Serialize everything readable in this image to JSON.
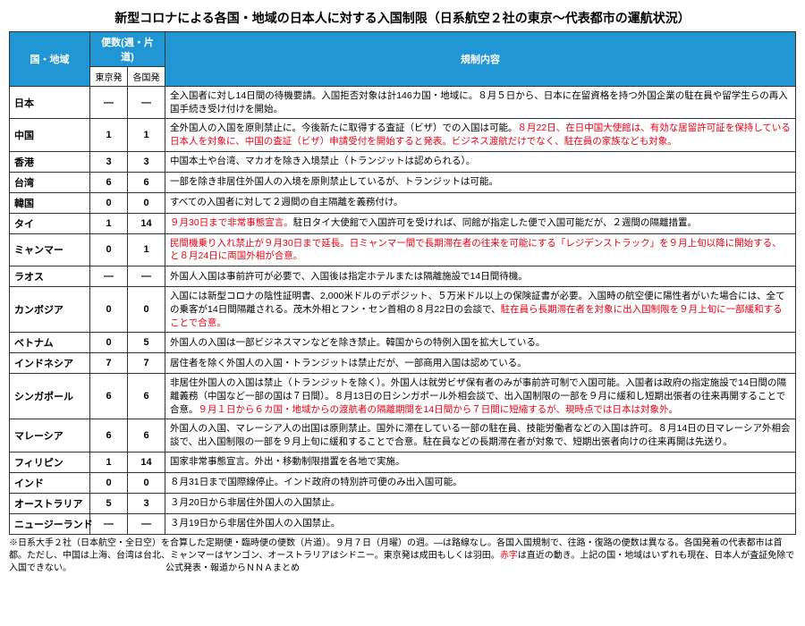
{
  "title": "新型コロナによる各国・地域の日本人に対する入国制限（日系航空２社の東京～代表都市の運航状況）",
  "headers": {
    "country": "国・地域",
    "freq_group": "便数(週・片道)",
    "from_tokyo": "東京発",
    "from_country": "各国発",
    "content": "規制内容"
  },
  "rows": [
    {
      "country": "日本",
      "tokyo": "―",
      "dest": "―",
      "content": "全入国者に対し14日間の待機要請。入国拒否対象は計146カ国・地域に。８月５日から、日本に在留資格を持つ外国企業の駐在員や留学生らの再入国手続き受け付けを開始。",
      "red": ""
    },
    {
      "country": "中国",
      "tokyo": "1",
      "dest": "1",
      "content": "全外国人の入国を原則禁止に。今後新たに取得する査証（ビザ）での入国は可能。",
      "red": "８月22日、在日中国大使館は、有効な居留許可証を保持している日本人を対象に、中国の査証（ビザ）申請受付を開始すると発表。ビジネス渡航だけでなく、駐在員の家族なども対象。"
    },
    {
      "country": "香港",
      "tokyo": "3",
      "dest": "3",
      "content": "中国本土や台湾、マカオを除き入境禁止（トランジットは認められる）。",
      "red": ""
    },
    {
      "country": "台湾",
      "tokyo": "6",
      "dest": "6",
      "content": "一部を除き非居住外国人の入境を原則禁止しているが、トランジットは可能。",
      "red": ""
    },
    {
      "country": "韓国",
      "tokyo": "0",
      "dest": "0",
      "content": "すべての入国者に対して２週間の自主隔離を義務付け。",
      "red": ""
    },
    {
      "country": "タイ",
      "tokyo": "1",
      "dest": "14",
      "content": "",
      "red": "９月30日まで非常事態宣言。",
      "content2": "駐日タイ大使館で入国許可を受ければ、同館が指定した便で入国可能だが、２週間の隔離措置。"
    },
    {
      "country": "ミャンマー",
      "tokyo": "0",
      "dest": "1",
      "content": "",
      "red": "民間機乗り入れ禁止が９月30日まで延長。日ミャンマー間で長期滞在者の往来を可能にする「レジデンストラック」を９月上旬以降に開始する、と８月24日に両国外相が合意。"
    },
    {
      "country": "ラオス",
      "tokyo": "―",
      "dest": "―",
      "content": "外国人入国は事前許可が必要で、入国後は指定ホテルまたは隔離施設で14日間待機。",
      "red": ""
    },
    {
      "country": "カンボジア",
      "tokyo": "0",
      "dest": "0",
      "content": "入国には新型コロナの陰性証明書、2,000米ドルのデポジット、５万米ドル以上の保険証書が必要。入国時の航空便に陽性者がいた場合には、全ての乗客が14日間隔離される。茂木外相とフン・セン首相の８月22日の会談で、",
      "red": "駐在員ら長期滞在者を対象に出入国制限を９月上旬に一部緩和することで合意。"
    },
    {
      "country": "ベトナム",
      "tokyo": "0",
      "dest": "5",
      "content": "外国人の入国は一部ビジネスマンなどを除き禁止。韓国からの特例入国を拡大している。",
      "red": ""
    },
    {
      "country": "インドネシア",
      "tokyo": "7",
      "dest": "7",
      "content": "居住者を除く外国人の入国・トランジットは禁止だが、一部商用入国は認めている。",
      "red": ""
    },
    {
      "country": "シンガポール",
      "tokyo": "6",
      "dest": "6",
      "content": "非居住外国人の入国は禁止（トランジットを除く）。外国人は就労ビザ保有者のみが事前許可制で入国可能。入国者は政府の指定施設で14日間の隔離義務（中国など一部の国は７日間）。８月13日の日シンガポール外相会談で、出入国制限の一部を９月に緩和し短期出張者の往来再開することで合意。",
      "red": "９月１日から６カ国・地域からの渡航者の隔離期間を14日間から７日間に短縮するが、現時点では日本は対象外。"
    },
    {
      "country": "マレーシア",
      "tokyo": "6",
      "dest": "6",
      "content": "外国人の入国、マレーシア人の出国は原則禁止。国外に滞在している一部の駐在員、技能労働者などの入国は許可。８月14日の日マレーシア外相会談で、出入国制限の一部を９月上旬に緩和することで合意。駐在員などの長期滞在者が対象で、短期出張者向けの往来再開は先送り。",
      "red": ""
    },
    {
      "country": "フィリピン",
      "tokyo": "1",
      "dest": "14",
      "content": "国家非常事態宣言。外出・移動制限措置を各地で実施。",
      "red": ""
    },
    {
      "country": "インド",
      "tokyo": "0",
      "dest": "0",
      "content": "８月31日まで国際線停止。インド政府の特別許可便のみ出入国可能。",
      "red": ""
    },
    {
      "country": "オーストラリア",
      "tokyo": "5",
      "dest": "3",
      "content": "３月20日から非居住外国人の入国禁止。",
      "red": ""
    },
    {
      "country": "ニュージーランド",
      "tokyo": "―",
      "dest": "―",
      "content": "３月19日から非居住外国人の入国禁止。",
      "red": ""
    }
  ],
  "footnote_pre": "※日系大手２社（日本航空・全日空）を合算した定期便・臨時便の便数（片道）。９月７日（月曜）の週。―は路線なし。各国入国規制で、往路・復路の便数は異なる。各国発着の代表都市は首都。ただし、中国は上海、台湾は台北、ミャンマーはヤンゴン、オーストラリアはシドニー。東京発は成田もしくは羽田。",
  "footnote_red": "赤字",
  "footnote_post": "は直近の動き。上記の国・地域はいずれも現在、日本人が査証免除で入国できない。　　　　　　　　　　　公式発表・報道からＮＮＡまとめ"
}
